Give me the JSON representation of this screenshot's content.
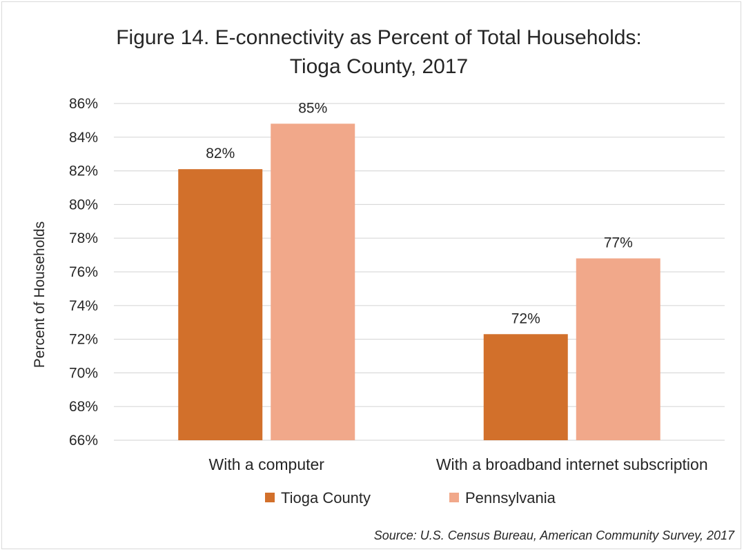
{
  "chart_data": {
    "type": "bar",
    "title_lines": [
      "Figure 14. E-connectivity as Percent of Total Households:",
      "Tioga County, 2017"
    ],
    "categories": [
      "With a computer",
      "With a broadband internet subscription"
    ],
    "series": [
      {
        "name": "Tioga County",
        "color": "#d2702b",
        "values": [
          82.1,
          72.3
        ],
        "labels": [
          "82%",
          "72%"
        ]
      },
      {
        "name": "Pennsylvania",
        "color": "#f1a88a",
        "values": [
          84.8,
          76.8
        ],
        "labels": [
          "85%",
          "77%"
        ]
      }
    ],
    "ylabel": "Percent of Households",
    "xlabel": "",
    "ylim": [
      66,
      86
    ],
    "yticks": [
      66,
      68,
      70,
      72,
      74,
      76,
      78,
      80,
      82,
      84,
      86
    ],
    "ytick_labels": [
      "66%",
      "68%",
      "70%",
      "72%",
      "74%",
      "76%",
      "78%",
      "80%",
      "82%",
      "84%",
      "86%"
    ],
    "grid": true,
    "legend_position": "bottom",
    "source": "Source: U.S. Census Bureau, American Community Survey, 2017"
  }
}
